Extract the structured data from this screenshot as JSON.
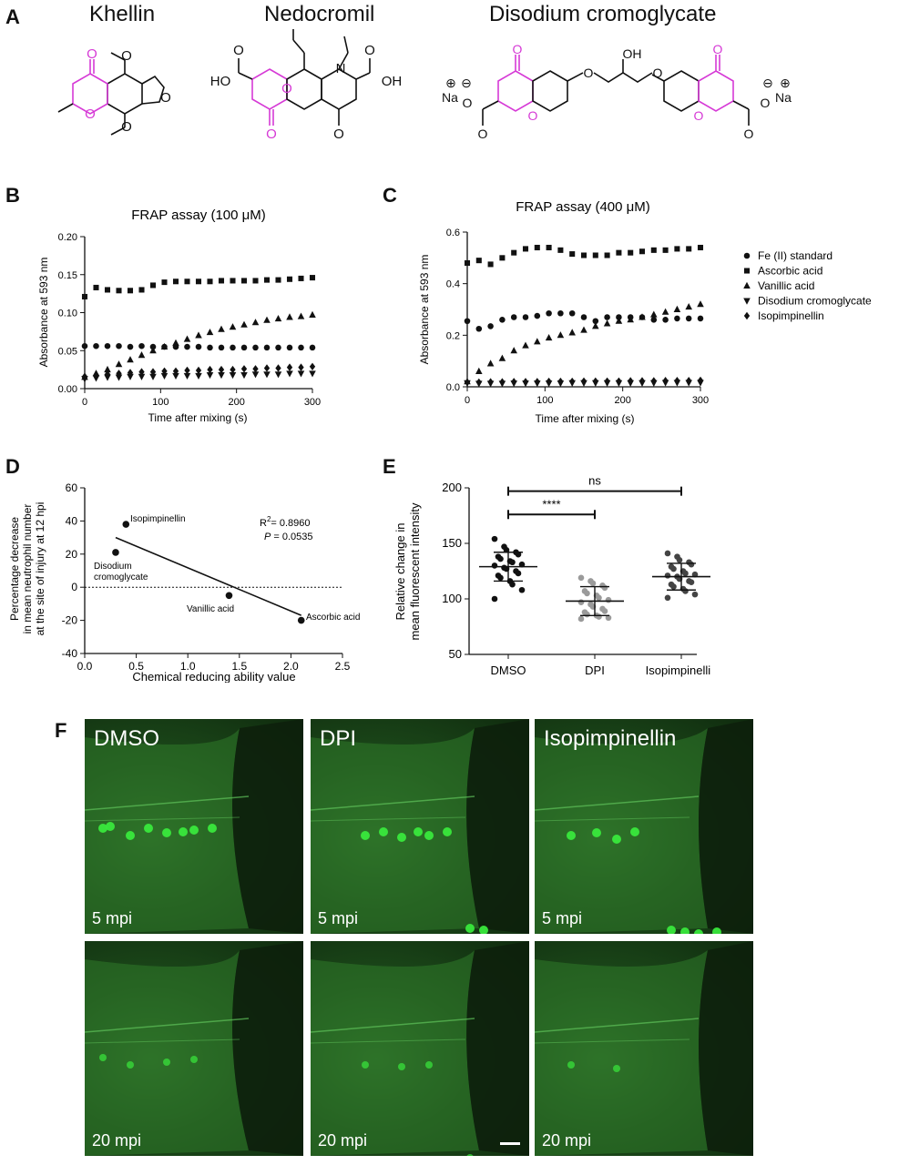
{
  "panels": {
    "A": "A",
    "B": "B",
    "C": "C",
    "D": "D",
    "E": "E",
    "F": "F"
  },
  "compounds": [
    "Khellin",
    "Nedocromil",
    "Disodium cromoglycate"
  ],
  "chem_labels": {
    "ho": "HO",
    "oh": "OH",
    "o": "O",
    "n": "N",
    "na": "Na",
    "plus": "⊕",
    "minus": "⊖"
  },
  "colors": {
    "core": "#d63ad6",
    "bond": "#111111",
    "mic_bg": "#133112",
    "cell": "#39e83c",
    "grey": "#9a9a9a",
    "dark": "#444444"
  },
  "chart_data": [
    {
      "type": "scatter",
      "title": "FRAP assay (100 μM)",
      "xlabel": "Time after mixing (s)",
      "ylabel": "Absorbance at 593 nm",
      "xlim": [
        0,
        300
      ],
      "ylim": [
        0,
        0.2
      ],
      "xticks": [
        0,
        100,
        200,
        300
      ],
      "yticks": [
        0.0,
        0.05,
        0.1,
        0.15,
        0.2
      ],
      "ytick_labels": [
        "0.00",
        "0.05",
        "0.10",
        "0.15",
        "0.20"
      ],
      "x": [
        0,
        15,
        30,
        45,
        60,
        75,
        90,
        105,
        120,
        135,
        150,
        165,
        180,
        195,
        210,
        225,
        240,
        255,
        270,
        285,
        300
      ],
      "series": [
        {
          "name": "Fe (II) standard",
          "marker": "circle",
          "values": [
            0.056,
            0.056,
            0.056,
            0.056,
            0.055,
            0.056,
            0.055,
            0.055,
            0.055,
            0.055,
            0.055,
            0.054,
            0.054,
            0.054,
            0.054,
            0.054,
            0.054,
            0.054,
            0.054,
            0.054,
            0.054
          ]
        },
        {
          "name": "Ascorbic acid",
          "marker": "square",
          "values": [
            0.121,
            0.133,
            0.13,
            0.129,
            0.129,
            0.13,
            0.136,
            0.14,
            0.141,
            0.141,
            0.141,
            0.141,
            0.142,
            0.142,
            0.142,
            0.142,
            0.143,
            0.143,
            0.144,
            0.145,
            0.146
          ]
        },
        {
          "name": "Vanillic acid",
          "marker": "triangle-up",
          "values": [
            0.015,
            0.02,
            0.025,
            0.032,
            0.038,
            0.044,
            0.05,
            0.055,
            0.06,
            0.065,
            0.07,
            0.074,
            0.078,
            0.081,
            0.084,
            0.087,
            0.09,
            0.092,
            0.094,
            0.095,
            0.097
          ]
        },
        {
          "name": "Disodium cromoglycate",
          "marker": "triangle-down",
          "values": [
            0.013,
            0.014,
            0.015,
            0.015,
            0.016,
            0.016,
            0.016,
            0.017,
            0.017,
            0.017,
            0.017,
            0.018,
            0.018,
            0.018,
            0.018,
            0.019,
            0.019,
            0.019,
            0.02,
            0.02,
            0.02
          ]
        },
        {
          "name": "Isopimpinellin",
          "marker": "diamond",
          "values": [
            0.016,
            0.018,
            0.019,
            0.02,
            0.021,
            0.022,
            0.022,
            0.023,
            0.023,
            0.024,
            0.024,
            0.025,
            0.025,
            0.025,
            0.026,
            0.026,
            0.027,
            0.027,
            0.028,
            0.028,
            0.029
          ]
        }
      ]
    },
    {
      "type": "scatter",
      "title": "FRAP assay (400 μM)",
      "xlabel": "Time after mixing (s)",
      "ylabel": "Absorbance at 593 nm",
      "xlim": [
        0,
        300
      ],
      "ylim": [
        0,
        0.6
      ],
      "xticks": [
        0,
        100,
        200,
        300
      ],
      "yticks": [
        0.0,
        0.2,
        0.4,
        0.6
      ],
      "ytick_labels": [
        "0.0",
        "0.2",
        "0.4",
        "0.6"
      ],
      "legend": "right",
      "x": [
        0,
        15,
        30,
        45,
        60,
        75,
        90,
        105,
        120,
        135,
        150,
        165,
        180,
        195,
        210,
        225,
        240,
        255,
        270,
        285,
        300
      ],
      "series": [
        {
          "name": "Fe (II) standard",
          "marker": "circle",
          "values": [
            0.255,
            0.225,
            0.235,
            0.26,
            0.27,
            0.27,
            0.275,
            0.285,
            0.285,
            0.285,
            0.27,
            0.255,
            0.27,
            0.27,
            0.27,
            0.27,
            0.26,
            0.26,
            0.265,
            0.265,
            0.265
          ]
        },
        {
          "name": "Ascorbic acid",
          "marker": "square",
          "values": [
            0.48,
            0.49,
            0.475,
            0.5,
            0.52,
            0.535,
            0.54,
            0.54,
            0.53,
            0.515,
            0.51,
            0.51,
            0.51,
            0.52,
            0.52,
            0.525,
            0.53,
            0.53,
            0.535,
            0.535,
            0.54
          ]
        },
        {
          "name": "Vanillic acid",
          "marker": "triangle-up",
          "values": [
            0.02,
            0.06,
            0.09,
            0.11,
            0.14,
            0.16,
            0.175,
            0.19,
            0.2,
            0.21,
            0.22,
            0.235,
            0.245,
            0.255,
            0.26,
            0.27,
            0.28,
            0.29,
            0.3,
            0.31,
            0.32
          ]
        },
        {
          "name": "Disodium cromoglycate",
          "marker": "triangle-down",
          "values": [
            0.015,
            0.013,
            0.013,
            0.013,
            0.014,
            0.014,
            0.014,
            0.014,
            0.014,
            0.015,
            0.015,
            0.015,
            0.015,
            0.015,
            0.015,
            0.015,
            0.015,
            0.016,
            0.016,
            0.016,
            0.016
          ]
        },
        {
          "name": "Isopimpinellin",
          "marker": "diamond",
          "values": [
            0.018,
            0.018,
            0.019,
            0.019,
            0.02,
            0.02,
            0.02,
            0.021,
            0.021,
            0.021,
            0.022,
            0.022,
            0.022,
            0.022,
            0.023,
            0.023,
            0.023,
            0.024,
            0.024,
            0.024,
            0.025
          ]
        }
      ]
    },
    {
      "type": "scatter",
      "xlabel": "Chemical reducing ability value",
      "ylabel_lines": [
        "Percentage decrease",
        "in mean neutrophil number",
        "at the site of injury at 12 hpi"
      ],
      "xlim": [
        0,
        2.5
      ],
      "ylim": [
        -40,
        60
      ],
      "xticks": [
        0.0,
        0.5,
        1.0,
        1.5,
        2.0,
        2.5
      ],
      "xtick_labels": [
        "0.0",
        "0.5",
        "1.0",
        "1.5",
        "2.0",
        "2.5"
      ],
      "yticks": [
        -40,
        -20,
        0,
        20,
        40,
        60
      ],
      "points": [
        {
          "label": "Isopimpinellin",
          "x": 0.4,
          "y": 38
        },
        {
          "label": "Disodium cromoglycate",
          "x": 0.3,
          "y": 21
        },
        {
          "label": "Vanillic acid",
          "x": 1.4,
          "y": -5
        },
        {
          "label": "Ascorbic acid",
          "x": 2.1,
          "y": -20
        }
      ],
      "fit_line": {
        "x": [
          0.3,
          2.1
        ],
        "y": [
          30,
          -17
        ]
      },
      "r2_text": "= 0.8960",
      "p_text": "= 0.0535",
      "r2_symbol": "R",
      "p_symbol": "P"
    },
    {
      "type": "scatter",
      "ylabel_lines": [
        "Relative change in",
        "mean fluorescent intensity"
      ],
      "categories": [
        "DMSO",
        "DPI",
        "Isopimpinellin"
      ],
      "ylim": [
        50,
        200
      ],
      "yticks": [
        50,
        100,
        150,
        200
      ],
      "series": [
        {
          "name": "DMSO",
          "mean": 129,
          "sd": 13,
          "values": [
            154,
            147,
            144,
            142,
            140,
            138,
            136,
            134,
            133,
            131,
            130,
            128,
            127,
            125,
            123,
            121,
            119,
            116,
            113,
            108,
            100
          ]
        },
        {
          "name": "DPI",
          "mean": 98,
          "sd": 13,
          "values": [
            119,
            116,
            114,
            112,
            110,
            107,
            105,
            103,
            101,
            99,
            97,
            95,
            93,
            91,
            89,
            88,
            86,
            85,
            84,
            83,
            82
          ]
        },
        {
          "name": "Isopimpinellin",
          "mean": 120,
          "sd": 12,
          "values": [
            141,
            138,
            135,
            133,
            131,
            129,
            127,
            125,
            123,
            122,
            121,
            120,
            118,
            116,
            115,
            113,
            111,
            109,
            107,
            104,
            101
          ]
        }
      ],
      "significance": [
        {
          "from": "DMSO",
          "to": "DPI",
          "label": "****"
        },
        {
          "from": "DMSO",
          "to": "Isopimpinellin",
          "label": "ns"
        }
      ]
    }
  ],
  "panel_d_labels": {
    "isopimpinellin": "Isopimpinellin",
    "disodium_1": "Disodium",
    "disodium_2": "cromoglycate",
    "vanillic": "Vanillic acid",
    "ascorbic": "Ascorbic acid"
  },
  "microscopy": {
    "conditions": [
      "DMSO",
      "DPI",
      "Isopimpinellin"
    ],
    "timepoints": [
      "5 mpi",
      "20 mpi"
    ]
  }
}
